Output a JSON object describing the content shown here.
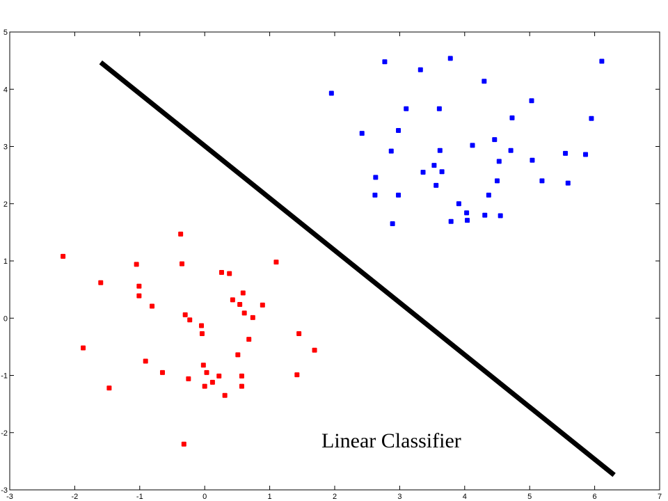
{
  "chart_data": {
    "type": "scatter",
    "title": "",
    "xlabel": "",
    "ylabel": "",
    "xlim": [
      -3,
      7
    ],
    "ylim": [
      -3,
      5
    ],
    "xticks": [
      -3,
      -2,
      -1,
      0,
      1,
      2,
      3,
      4,
      5,
      6,
      7
    ],
    "yticks": [
      -3,
      -2,
      -1,
      0,
      1,
      2,
      3,
      4,
      5
    ],
    "grid": false,
    "annotation": "Linear Classifier",
    "series": [
      {
        "color": "#0000ff",
        "points": [
          [
            1.95,
            3.93
          ],
          [
            2.77,
            4.48
          ],
          [
            3.32,
            4.34
          ],
          [
            3.78,
            4.54
          ],
          [
            4.3,
            4.14
          ],
          [
            6.11,
            4.49
          ],
          [
            3.1,
            3.66
          ],
          [
            3.61,
            3.66
          ],
          [
            5.03,
            3.8
          ],
          [
            4.73,
            3.5
          ],
          [
            5.95,
            3.49
          ],
          [
            2.42,
            3.23
          ],
          [
            2.98,
            3.28
          ],
          [
            2.87,
            2.92
          ],
          [
            3.62,
            2.93
          ],
          [
            4.12,
            3.02
          ],
          [
            4.46,
            3.12
          ],
          [
            4.71,
            2.93
          ],
          [
            4.53,
            2.74
          ],
          [
            5.04,
            2.76
          ],
          [
            5.55,
            2.88
          ],
          [
            5.86,
            2.86
          ],
          [
            2.63,
            2.46
          ],
          [
            3.36,
            2.55
          ],
          [
            3.53,
            2.67
          ],
          [
            3.65,
            2.56
          ],
          [
            3.56,
            2.32
          ],
          [
            4.5,
            2.4
          ],
          [
            5.19,
            2.4
          ],
          [
            5.59,
            2.36
          ],
          [
            2.62,
            2.15
          ],
          [
            2.98,
            2.15
          ],
          [
            4.37,
            2.15
          ],
          [
            3.91,
            2.0
          ],
          [
            4.03,
            1.84
          ],
          [
            4.31,
            1.8
          ],
          [
            4.55,
            1.79
          ],
          [
            2.89,
            1.65
          ],
          [
            3.79,
            1.69
          ],
          [
            4.04,
            1.71
          ]
        ]
      },
      {
        "color": "#ff0000",
        "points": [
          [
            -2.18,
            1.08
          ],
          [
            -1.6,
            0.62
          ],
          [
            -1.05,
            0.94
          ],
          [
            -0.37,
            1.47
          ],
          [
            -0.35,
            0.95
          ],
          [
            0.26,
            0.8
          ],
          [
            0.38,
            0.78
          ],
          [
            1.1,
            0.98
          ],
          [
            -1.01,
            0.56
          ],
          [
            -1.01,
            0.39
          ],
          [
            -0.81,
            0.21
          ],
          [
            0.59,
            0.44
          ],
          [
            0.43,
            0.32
          ],
          [
            0.54,
            0.24
          ],
          [
            0.89,
            0.23
          ],
          [
            0.61,
            0.09
          ],
          [
            0.74,
            0.01
          ],
          [
            -0.3,
            0.06
          ],
          [
            -0.23,
            -0.03
          ],
          [
            -0.05,
            -0.13
          ],
          [
            -0.04,
            -0.27
          ],
          [
            1.45,
            -0.27
          ],
          [
            0.68,
            -0.37
          ],
          [
            -1.87,
            -0.52
          ],
          [
            1.69,
            -0.56
          ],
          [
            0.51,
            -0.64
          ],
          [
            -0.91,
            -0.75
          ],
          [
            -0.02,
            -0.82
          ],
          [
            -0.65,
            -0.95
          ],
          [
            0.03,
            -0.95
          ],
          [
            0.22,
            -1.01
          ],
          [
            0.57,
            -1.01
          ],
          [
            1.42,
            -0.99
          ],
          [
            -0.25,
            -1.06
          ],
          [
            0.12,
            -1.12
          ],
          [
            -1.47,
            -1.22
          ],
          [
            0.0,
            -1.19
          ],
          [
            0.57,
            -1.19
          ],
          [
            0.31,
            -1.35
          ],
          [
            -0.32,
            -2.2
          ]
        ]
      }
    ],
    "decision_line": {
      "x": [
        -1.6,
        6.3
      ],
      "y": [
        4.47,
        -2.74
      ],
      "color": "#000000"
    }
  }
}
